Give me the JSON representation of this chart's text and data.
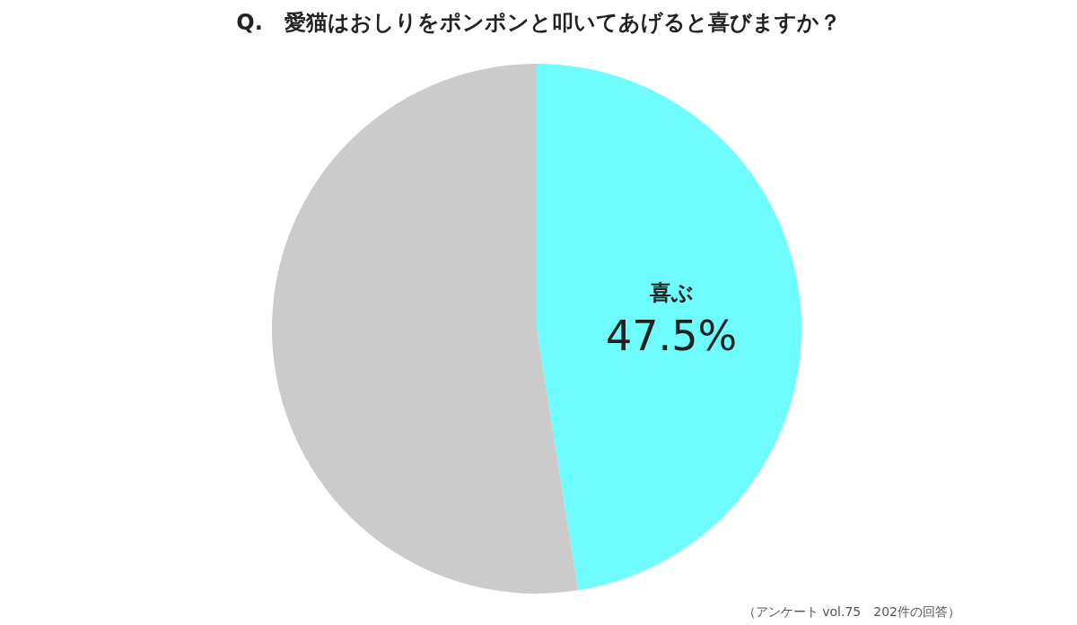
{
  "chart_data": {
    "type": "pie",
    "title": "Q.　愛猫はおしりをポンポンと叩いてあげると喜びますか？",
    "categories": [
      "喜ぶ",
      null
    ],
    "values": [
      47.5,
      52.5
    ],
    "colors": [
      "#6ffcfd",
      "#cbcbcb"
    ],
    "value_labels": [
      "47.5%",
      null
    ],
    "annotations": [
      "（アンケート vol.75　202件の回答）"
    ],
    "legend": false
  }
}
